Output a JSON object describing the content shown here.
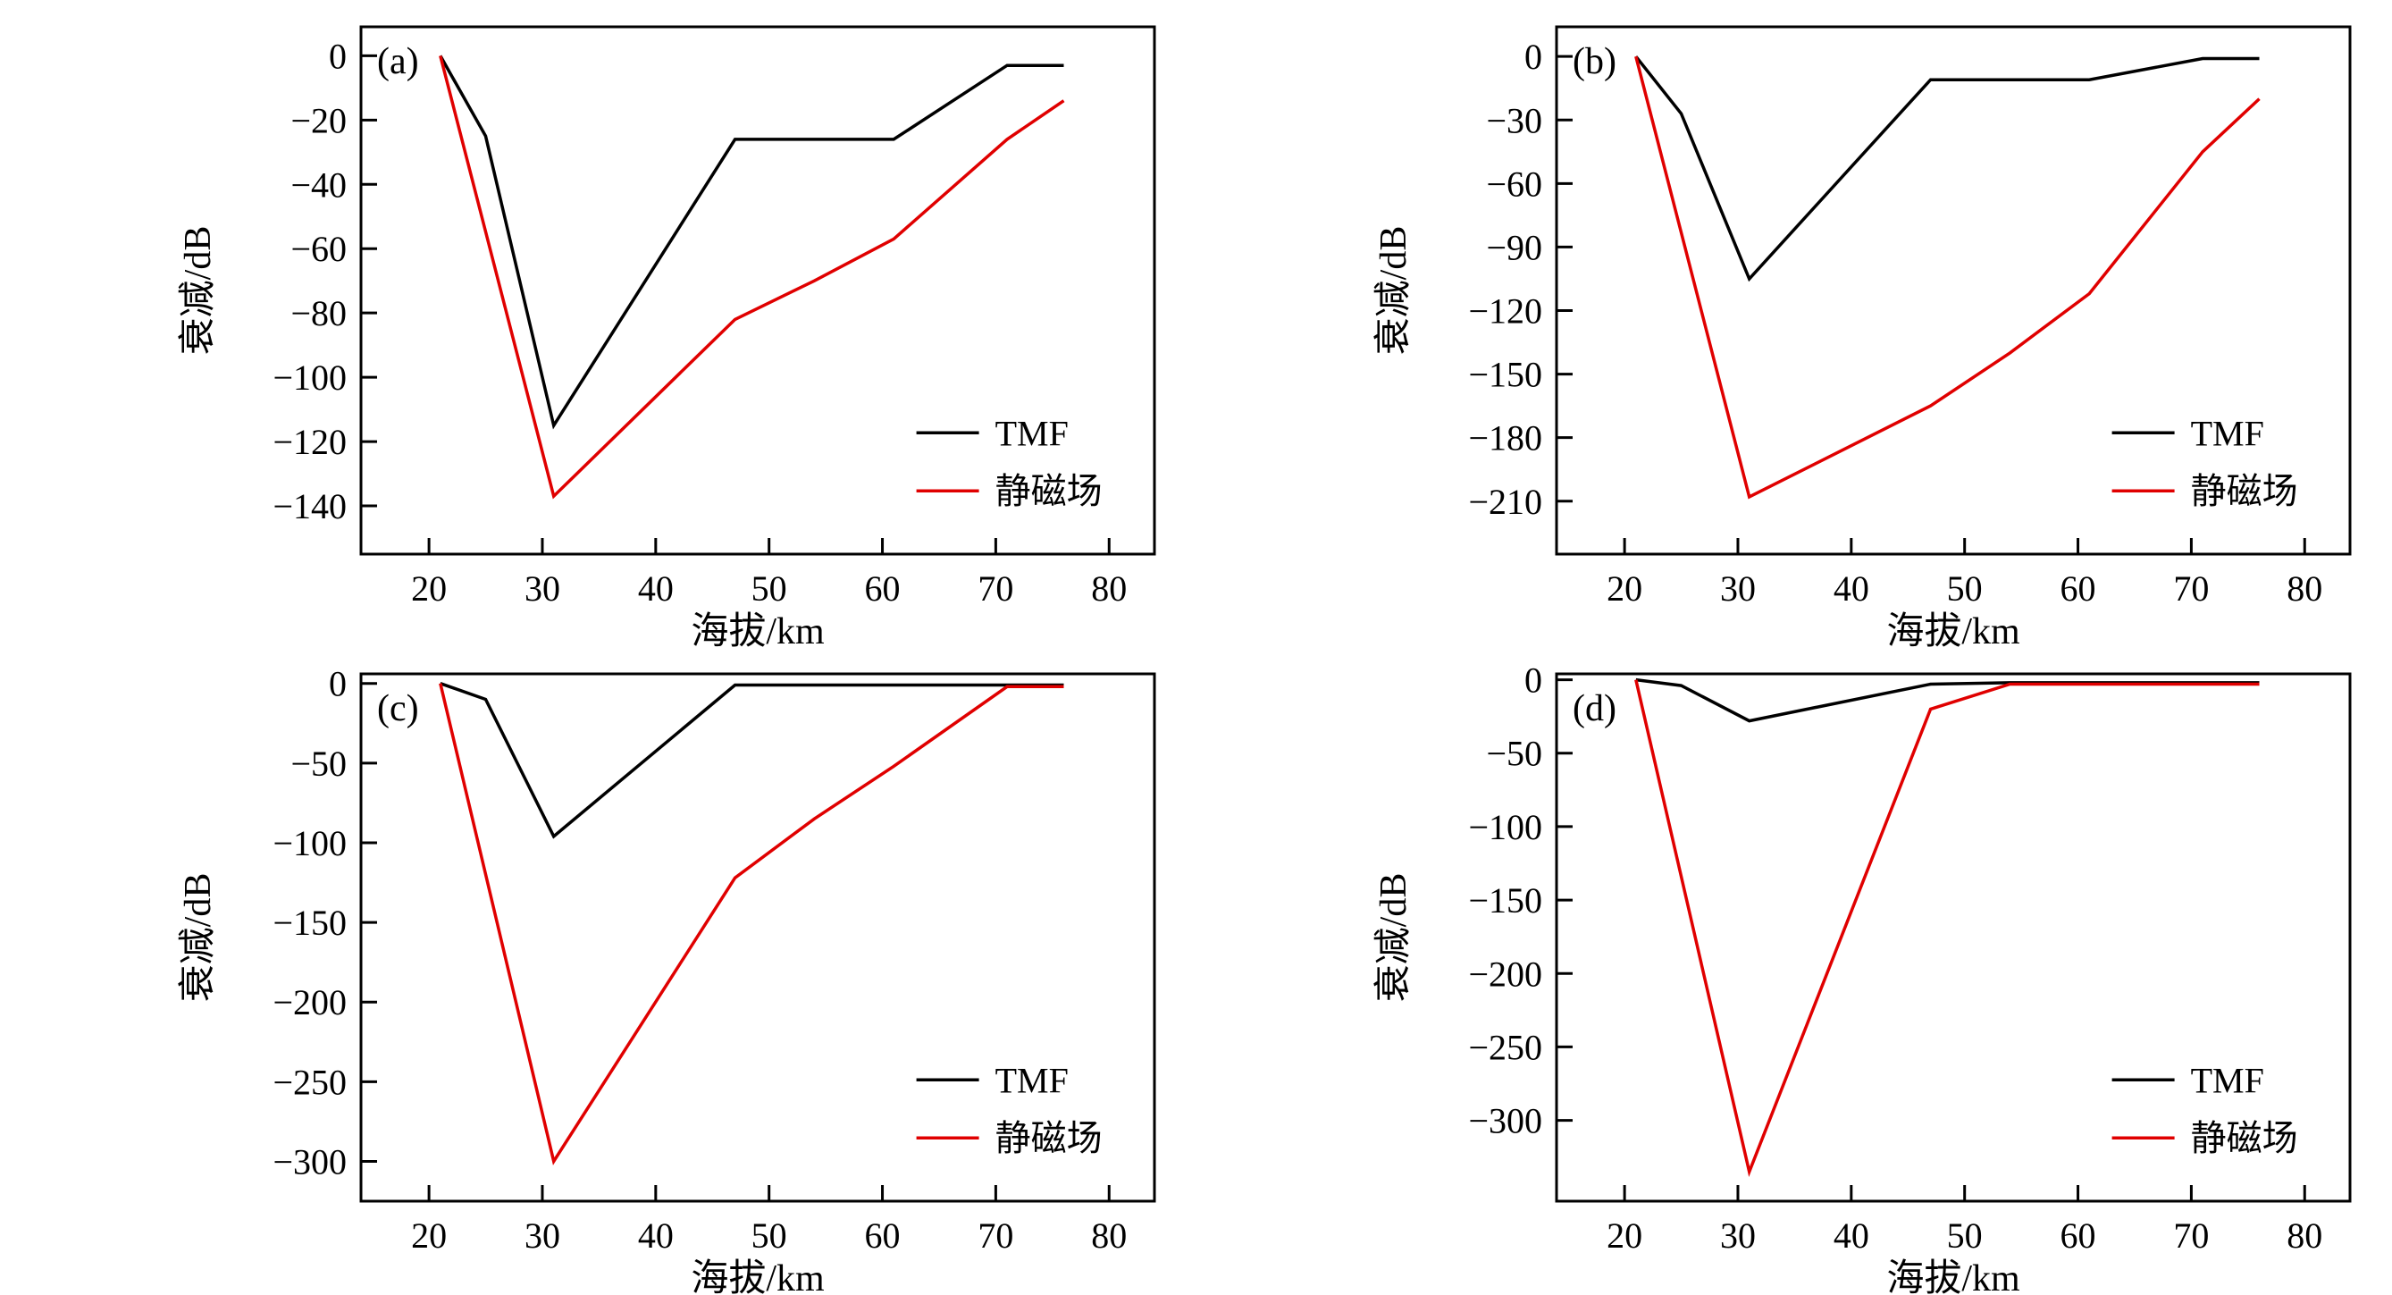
{
  "figure": {
    "background": "#ffffff",
    "axis_color": "#000000",
    "text_color": "#000000"
  },
  "chart_data": [
    {
      "panel_label": "(a)",
      "type": "line",
      "xlabel": "海拔/km",
      "ylabel": "衰减/dB",
      "xlim": [
        14,
        84
      ],
      "ylim": [
        -155,
        9
      ],
      "xticks": [
        20,
        30,
        40,
        50,
        60,
        70,
        80
      ],
      "yticks": [
        0,
        -20,
        -40,
        -60,
        -80,
        -100,
        -120,
        -140
      ],
      "grid": false,
      "legend_position": "lower-right",
      "series": [
        {
          "name": "TMF",
          "color": "#000000",
          "points": [
            [
              21,
              0
            ],
            [
              25,
              -25
            ],
            [
              31,
              -115
            ],
            [
              47,
              -26
            ],
            [
              61,
              -26
            ],
            [
              71,
              -3
            ],
            [
              76,
              -3
            ]
          ]
        },
        {
          "name": "静磁场",
          "color": "#e00000",
          "points": [
            [
              21,
              0
            ],
            [
              31,
              -137
            ],
            [
              47,
              -82
            ],
            [
              54,
              -70
            ],
            [
              61,
              -57
            ],
            [
              71,
              -26
            ],
            [
              76,
              -14
            ]
          ]
        }
      ]
    },
    {
      "panel_label": "(b)",
      "type": "line",
      "xlabel": "海拔/km",
      "ylabel": "衰减/dB",
      "xlim": [
        14,
        84
      ],
      "ylim": [
        -235,
        14
      ],
      "xticks": [
        20,
        30,
        40,
        50,
        60,
        70,
        80
      ],
      "yticks": [
        0,
        -30,
        -60,
        -90,
        -120,
        -150,
        -180,
        -210
      ],
      "grid": false,
      "legend_position": "lower-right",
      "series": [
        {
          "name": "TMF",
          "color": "#000000",
          "points": [
            [
              21,
              0
            ],
            [
              25,
              -27
            ],
            [
              31,
              -105
            ],
            [
              47,
              -11
            ],
            [
              61,
              -11
            ],
            [
              71,
              -1
            ],
            [
              76,
              -1
            ]
          ]
        },
        {
          "name": "静磁场",
          "color": "#e00000",
          "points": [
            [
              21,
              0
            ],
            [
              31,
              -208
            ],
            [
              47,
              -165
            ],
            [
              54,
              -140
            ],
            [
              61,
              -112
            ],
            [
              71,
              -45
            ],
            [
              76,
              -20
            ]
          ]
        }
      ]
    },
    {
      "panel_label": "(c)",
      "type": "line",
      "xlabel": "海拔/km",
      "ylabel": "衰减/dB",
      "xlim": [
        14,
        84
      ],
      "ylim": [
        -325,
        6
      ],
      "xticks": [
        20,
        30,
        40,
        50,
        60,
        70,
        80
      ],
      "yticks": [
        0,
        -50,
        -100,
        -150,
        -200,
        -250,
        -300
      ],
      "grid": false,
      "legend_position": "lower-right",
      "series": [
        {
          "name": "TMF",
          "color": "#000000",
          "points": [
            [
              21,
              0
            ],
            [
              25,
              -10
            ],
            [
              31,
              -96
            ],
            [
              47,
              -1
            ],
            [
              61,
              -1
            ],
            [
              71,
              -1
            ],
            [
              76,
              -1
            ]
          ]
        },
        {
          "name": "静磁场",
          "color": "#e00000",
          "points": [
            [
              21,
              0
            ],
            [
              31,
              -300
            ],
            [
              47,
              -122
            ],
            [
              54,
              -85
            ],
            [
              61,
              -52
            ],
            [
              71,
              -2
            ],
            [
              76,
              -2
            ]
          ]
        }
      ]
    },
    {
      "panel_label": "(d)",
      "type": "line",
      "xlabel": "海拔/km",
      "ylabel": "衰减/dB",
      "xlim": [
        14,
        84
      ],
      "ylim": [
        -355,
        4
      ],
      "xticks": [
        20,
        30,
        40,
        50,
        60,
        70,
        80
      ],
      "yticks": [
        0,
        -50,
        -100,
        -150,
        -200,
        -250,
        -300
      ],
      "grid": false,
      "legend_position": "lower-right",
      "series": [
        {
          "name": "TMF",
          "color": "#000000",
          "points": [
            [
              21,
              0
            ],
            [
              25,
              -4
            ],
            [
              31,
              -28
            ],
            [
              47,
              -3
            ],
            [
              54,
              -2
            ],
            [
              61,
              -2
            ],
            [
              76,
              -2
            ]
          ]
        },
        {
          "name": "静磁场",
          "color": "#e00000",
          "points": [
            [
              21,
              0
            ],
            [
              31,
              -335
            ],
            [
              47,
              -20
            ],
            [
              54,
              -3
            ],
            [
              61,
              -3
            ],
            [
              76,
              -3
            ]
          ]
        }
      ]
    }
  ]
}
